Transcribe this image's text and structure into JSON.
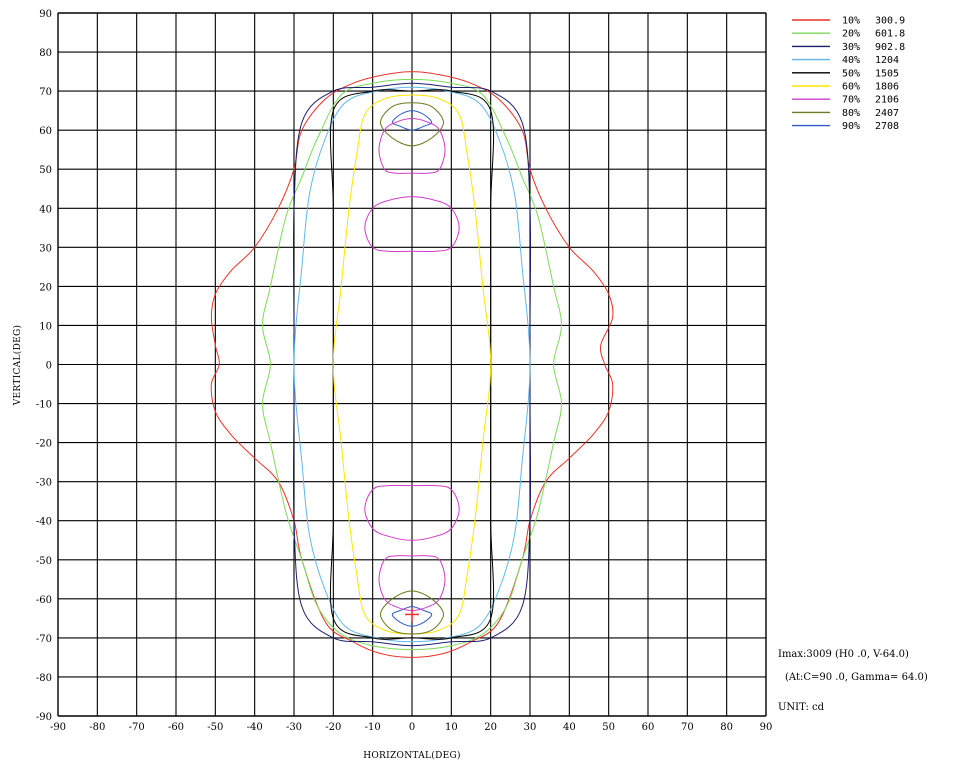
{
  "chart_data": {
    "type": "line",
    "subtype": "isocandela-contour",
    "xlabel": "HORIZONTAL(DEG)",
    "ylabel": "VERTICAL(DEG)",
    "xlim": [
      -90,
      90
    ],
    "ylim": [
      -90,
      90
    ],
    "x_ticks": [
      "-90",
      "-80",
      "-70",
      "-60",
      "-50",
      "-40",
      "-30",
      "-20",
      "-10",
      "0",
      "10",
      "20",
      "30",
      "40",
      "50",
      "60",
      "70",
      "80",
      "90"
    ],
    "y_ticks": [
      "90",
      "80",
      "70",
      "60",
      "50",
      "40",
      "30",
      "20",
      "10",
      "0",
      "-10",
      "-20",
      "-30",
      "-40",
      "-50",
      "-60",
      "-70",
      "-80",
      "-90"
    ],
    "grid": true,
    "legend_position": "top-right",
    "series": [
      {
        "name": "10%",
        "value": "300.9",
        "color": "#e8332a",
        "x": [
          0,
          8,
          15,
          22,
          28,
          30,
          34,
          40,
          46,
          50,
          51,
          48,
          49,
          51,
          50,
          46,
          40,
          34,
          30,
          28,
          22,
          15,
          8,
          0,
          -8,
          -15,
          -22,
          -28,
          -30,
          -34,
          -40,
          -46,
          -50,
          -51,
          -49,
          -50,
          -51,
          -50,
          -46,
          -40,
          -34,
          -30,
          -28,
          -22,
          -15,
          -8,
          0
        ],
        "y": [
          75,
          74,
          72,
          68,
          60,
          50,
          40,
          30,
          24,
          18,
          12,
          5,
          0,
          -5,
          -12,
          -18,
          -24,
          -30,
          -40,
          -50,
          -66,
          -71,
          -74,
          -75,
          -74,
          -71,
          -66,
          -50,
          -40,
          -30,
          -24,
          -18,
          -12,
          -5,
          0,
          5,
          12,
          18,
          24,
          30,
          40,
          50,
          60,
          68,
          72,
          74,
          75
        ]
      },
      {
        "name": "20%",
        "value": "601.8",
        "color": "#7ed957",
        "x": [
          0,
          10,
          18,
          24,
          28,
          32,
          36,
          38,
          36,
          38,
          36,
          32,
          28,
          24,
          18,
          10,
          0,
          -10,
          -18,
          -24,
          -28,
          -32,
          -36,
          -38,
          -36,
          -38,
          -36,
          -32,
          -28,
          -24,
          -18,
          -10,
          0
        ],
        "y": [
          73,
          72,
          69,
          58,
          48,
          38,
          20,
          10,
          0,
          -10,
          -20,
          -38,
          -50,
          -62,
          -69,
          -72,
          -73,
          -72,
          -69,
          -62,
          -50,
          -38,
          -20,
          -10,
          0,
          10,
          20,
          38,
          48,
          58,
          69,
          72,
          73
        ]
      },
      {
        "name": "30%",
        "value": "902.8",
        "color": "#1c1f6f",
        "x": [
          0,
          10,
          20,
          28,
          30,
          30,
          30,
          30,
          30,
          28,
          20,
          10,
          0,
          -10,
          -20,
          -28,
          -30,
          -30,
          -30,
          -30,
          -30,
          -28,
          -20,
          -10,
          0
        ],
        "y": [
          72,
          71,
          70,
          62,
          40,
          10,
          0,
          -10,
          -40,
          -62,
          -70,
          -71,
          -72,
          -71,
          -70,
          -62,
          -40,
          -10,
          0,
          10,
          40,
          62,
          70,
          71,
          72
        ]
      },
      {
        "name": "40%",
        "value": "1204",
        "color": "#5fb8e8",
        "x": [
          0,
          9,
          17,
          22,
          26,
          28,
          30,
          28,
          26,
          22,
          17,
          9,
          0,
          -9,
          -17,
          -22,
          -26,
          -28,
          -30,
          -28,
          -26,
          -22,
          -17,
          -9,
          0
        ],
        "y": [
          71,
          70,
          67,
          58,
          44,
          25,
          0,
          -25,
          -44,
          -58,
          -67,
          -70,
          -71,
          -70,
          -67,
          -58,
          -44,
          -25,
          0,
          25,
          44,
          58,
          67,
          70,
          71
        ]
      },
      {
        "name": "50%",
        "value": "1505",
        "color": "#000000",
        "x": [
          0,
          10,
          20,
          20,
          20,
          20,
          20,
          20,
          10,
          0,
          -10,
          -20,
          -20,
          -20,
          -20,
          -20,
          -20,
          -10,
          0
        ],
        "y": [
          70,
          70,
          65,
          40,
          10,
          -10,
          -40,
          -65,
          -70,
          -70,
          -70,
          -65,
          -40,
          -10,
          10,
          40,
          65,
          70,
          70
        ]
      },
      {
        "name": "60%",
        "value": "1806",
        "color": "#ffe600",
        "x": [
          0,
          7,
          12,
          14,
          16,
          18,
          20,
          18,
          16,
          14,
          12,
          7,
          0,
          -7,
          -12,
          -14,
          -16,
          -18,
          -20,
          -18,
          -16,
          -14,
          -12,
          -7,
          0
        ],
        "y": [
          69,
          68,
          64,
          54,
          40,
          20,
          0,
          -20,
          -40,
          -54,
          -64,
          -68,
          -69,
          -68,
          -64,
          -54,
          -40,
          -20,
          0,
          20,
          40,
          54,
          64,
          68,
          69
        ]
      },
      {
        "name": "70%",
        "value": "2106",
        "color": "#d23bcb",
        "x": [
          0,
          6,
          10,
          12,
          10,
          6,
          0,
          -6,
          -10,
          -12,
          -10,
          -6,
          0
        ],
        "y": [
          43,
          42,
          40,
          35,
          30,
          29,
          29,
          29,
          30,
          35,
          40,
          42,
          43
        ]
      },
      {
        "name": "80%",
        "value": "2407",
        "color": "#6b7a1e",
        "x": [
          0,
          5,
          8,
          5,
          0,
          -5,
          -8,
          -5,
          0
        ],
        "y": [
          67,
          66,
          62,
          58,
          56,
          58,
          62,
          66,
          67
        ]
      },
      {
        "name": "90%",
        "value": "2708",
        "color": "#2d59c9",
        "x": [
          0,
          3,
          5,
          3,
          0,
          -3,
          -5,
          -3,
          0
        ],
        "y": [
          65,
          64,
          62,
          61,
          60,
          61,
          62,
          64,
          65
        ]
      }
    ],
    "marker": {
      "x": 0,
      "y": -64,
      "color": "#e8332a"
    }
  },
  "info": {
    "imax": "Imax:3009 (H0 .0, V-64.0)",
    "at": "(At:C=90 .0, Gamma= 64.0)",
    "unit": "UNIT:  cd"
  }
}
